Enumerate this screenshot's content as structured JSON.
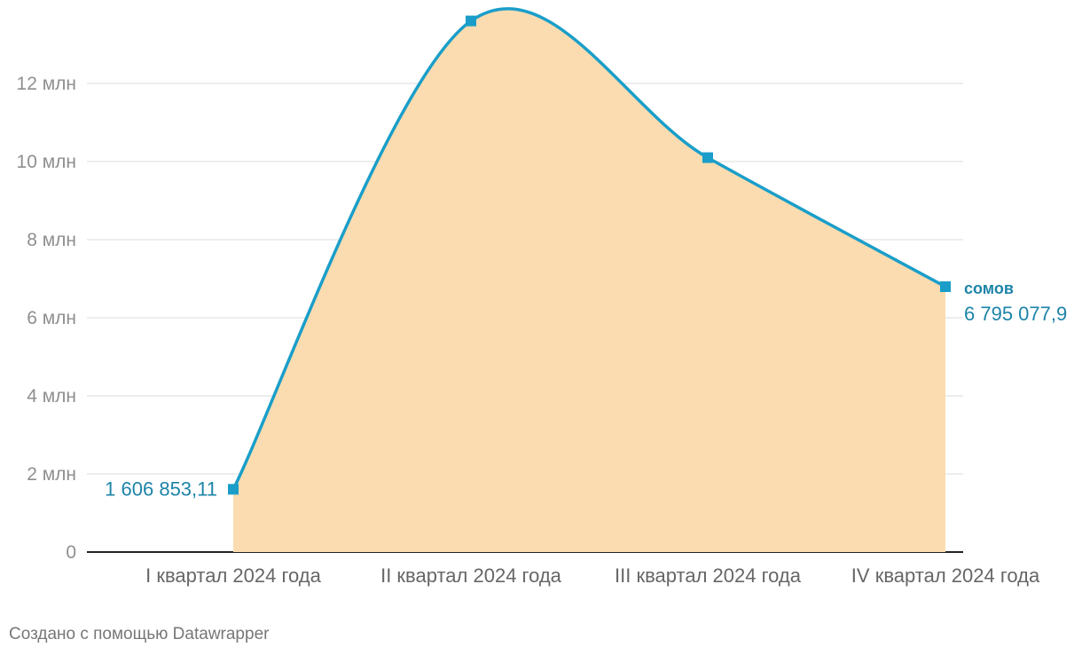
{
  "chart_data": {
    "type": "area",
    "categories": [
      "I квартал 2024 года",
      "II квартал 2024 года",
      "III квартал 2024 года",
      "IV квартал 2024 года"
    ],
    "series": [
      {
        "name": "сомов",
        "values": [
          1606853.11,
          13600000,
          10100000,
          6795077.9
        ]
      }
    ],
    "point_labels": [
      {
        "index": 0,
        "text": "1 606 853,11"
      },
      {
        "index": 3,
        "text": "6 795 077,9"
      }
    ],
    "y_ticks": [
      {
        "value": 0,
        "label": "0"
      },
      {
        "value": 2000000,
        "label": "2 млн"
      },
      {
        "value": 4000000,
        "label": "4 млн"
      },
      {
        "value": 6000000,
        "label": "6 млн"
      },
      {
        "value": 8000000,
        "label": "8 млн"
      },
      {
        "value": 10000000,
        "label": "10 млн"
      },
      {
        "value": 12000000,
        "label": "12 млн"
      }
    ],
    "ylim": [
      0,
      14000000
    ],
    "grid": true,
    "colors": {
      "line": "#1a9ec9",
      "fill": "#fadcb0",
      "label": "#1d84a8"
    }
  },
  "footer": {
    "credit": "Создано с помощью Datawrapper"
  }
}
